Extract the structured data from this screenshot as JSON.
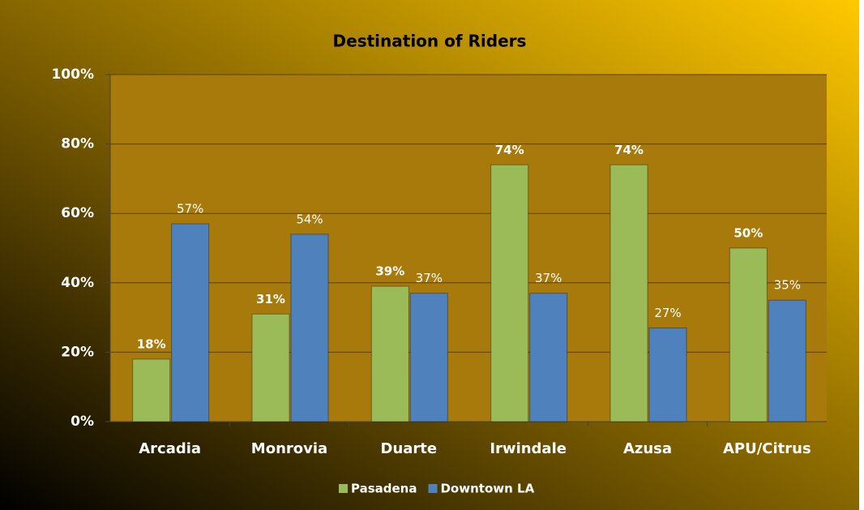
{
  "chart_data": {
    "type": "bar",
    "title": "Destination of Riders",
    "categories": [
      "Arcadia",
      "Monrovia",
      "Duarte",
      "Irwindale",
      "Azusa",
      "APU/Citrus"
    ],
    "series": [
      {
        "name": "Pasadena",
        "color": "#9bbb59",
        "values": [
          18,
          31,
          39,
          74,
          74,
          50
        ],
        "value_labels": [
          "18%",
          "31%",
          "39%",
          "74%",
          "74%",
          "50%"
        ]
      },
      {
        "name": "Downtown LA",
        "color": "#4f81bd",
        "values": [
          57,
          54,
          37,
          37,
          27,
          35
        ],
        "value_labels": [
          "57%",
          "54%",
          "37%",
          "37%",
          "27%",
          "35%"
        ]
      }
    ],
    "ylim": [
      0,
      100
    ],
    "yticks": [
      {
        "value": 0,
        "label": "0%"
      },
      {
        "value": 20,
        "label": "20%"
      },
      {
        "value": 40,
        "label": "40%"
      },
      {
        "value": 60,
        "label": "60%"
      },
      {
        "value": 80,
        "label": "80%"
      },
      {
        "value": 100,
        "label": "100%"
      }
    ],
    "grid": true,
    "legend": "bottom"
  }
}
